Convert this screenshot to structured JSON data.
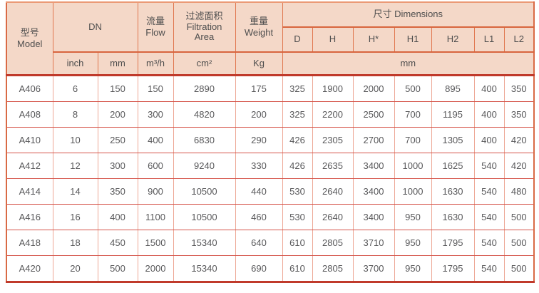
{
  "colors": {
    "header_bg": "#f4d8c8",
    "header_grid": "#e0774f",
    "header_rule": "#d8653e",
    "frame_side": "#d96a45",
    "frame_top": "#eb9a75",
    "frame_bottom": "#c03a2b",
    "body_row_line": "#d5544a",
    "body_col_line": "#eda795",
    "header_text": "#4e4e4e",
    "body_text": "#58585a"
  },
  "table": {
    "header": {
      "model_zh": "型号",
      "model_en": "Model",
      "dn": "DN",
      "flow_zh": "流量",
      "flow_en": "Flow",
      "filtration_zh": "过滤面积",
      "filtration_en1": "Filtration",
      "filtration_en2": "Area",
      "weight_zh": "重量",
      "weight_en": "Weight",
      "dimensions": "尺寸 Dimensions",
      "dim_cols": [
        "D",
        "H",
        "H*",
        "H1",
        "H2",
        "L1",
        "L2"
      ],
      "units": {
        "inch": "inch",
        "mm": "mm",
        "flow": "m³/h",
        "area": "cm²",
        "weight": "Kg",
        "dims": "mm"
      }
    },
    "rows": [
      [
        "A406",
        "6",
        "150",
        "150",
        "2890",
        "175",
        "325",
        "1900",
        "2000",
        "500",
        "895",
        "400",
        "350"
      ],
      [
        "A408",
        "8",
        "200",
        "300",
        "4820",
        "200",
        "325",
        "2200",
        "2500",
        "700",
        "1195",
        "400",
        "350"
      ],
      [
        "A410",
        "10",
        "250",
        "400",
        "6830",
        "290",
        "426",
        "2305",
        "2700",
        "700",
        "1305",
        "400",
        "420"
      ],
      [
        "A412",
        "12",
        "300",
        "600",
        "9240",
        "330",
        "426",
        "2635",
        "3400",
        "1000",
        "1625",
        "540",
        "420"
      ],
      [
        "A414",
        "14",
        "350",
        "900",
        "10500",
        "440",
        "530",
        "2640",
        "3400",
        "1000",
        "1630",
        "540",
        "480"
      ],
      [
        "A416",
        "16",
        "400",
        "1100",
        "10500",
        "460",
        "530",
        "2640",
        "3400",
        "950",
        "1630",
        "540",
        "500"
      ],
      [
        "A418",
        "18",
        "450",
        "1500",
        "15340",
        "640",
        "610",
        "2805",
        "3710",
        "950",
        "1795",
        "540",
        "500"
      ],
      [
        "A420",
        "20",
        "500",
        "2000",
        "15340",
        "690",
        "610",
        "2805",
        "3700",
        "950",
        "1795",
        "540",
        "500"
      ]
    ]
  }
}
